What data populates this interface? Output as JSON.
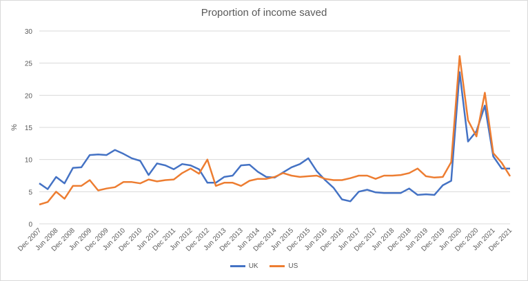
{
  "chart_data": {
    "type": "line",
    "title": "Proportion of income saved",
    "ylabel": "%",
    "xlabel": "",
    "ylim": [
      0,
      30
    ],
    "yticks": [
      0,
      5,
      10,
      15,
      20,
      25,
      30
    ],
    "grid": true,
    "legend_position": "bottom",
    "x": [
      "Dec 2007",
      "Mar 2008",
      "Jun 2008",
      "Sep 2008",
      "Dec 2008",
      "Mar 2009",
      "Jun 2009",
      "Sep 2009",
      "Dec 2009",
      "Mar 2010",
      "Jun 2010",
      "Sep 2010",
      "Dec 2010",
      "Mar 2011",
      "Jun 2011",
      "Sep 2011",
      "Dec 2011",
      "Mar 2012",
      "Jun 2012",
      "Sep 2012",
      "Dec 2012",
      "Mar 2013",
      "Jun 2013",
      "Sep 2013",
      "Dec 2013",
      "Mar 2014",
      "Jun 2014",
      "Sep 2014",
      "Dec 2014",
      "Mar 2015",
      "Jun 2015",
      "Sep 2015",
      "Dec 2015",
      "Mar 2016",
      "Jun 2016",
      "Sep 2016",
      "Dec 2016",
      "Mar 2017",
      "Jun 2017",
      "Sep 2017",
      "Dec 2017",
      "Mar 2018",
      "Jun 2018",
      "Sep 2018",
      "Dec 2018",
      "Mar 2019",
      "Jun 2019",
      "Sep 2019",
      "Dec 2019",
      "Mar 2020",
      "Jun 2020",
      "Sep 2020",
      "Dec 2020",
      "Mar 2021",
      "Jun 2021",
      "Sep 2021",
      "Dec 2021"
    ],
    "x_tick_labels": [
      "Dec 2007",
      "Jun 2008",
      "Dec 2008",
      "Jun 2009",
      "Dec 2009",
      "Jun 2010",
      "Dec 2010",
      "Jun 2011",
      "Dec 2011",
      "Jun 2012",
      "Dec 2012",
      "Jun 2013",
      "Dec 2013",
      "Jun 2014",
      "Dec 2014",
      "Jun 2015",
      "Dec 2015",
      "Jun 2016",
      "Dec 2016",
      "Jun 2017",
      "Dec 2017",
      "Jun 2018",
      "Dec 2018",
      "Jun 2019",
      "Dec 2019",
      "Jun 2020",
      "Dec 2020",
      "Jun 2021",
      "Dec 2021"
    ],
    "series": [
      {
        "name": "UK",
        "color": "#4472c4",
        "values": [
          6.3,
          5.4,
          7.3,
          6.3,
          8.7,
          8.8,
          10.7,
          10.8,
          10.7,
          11.5,
          10.9,
          10.2,
          9.8,
          7.6,
          9.4,
          9.1,
          8.5,
          9.3,
          9.1,
          8.5,
          6.4,
          6.4,
          7.3,
          7.5,
          9.1,
          9.2,
          8.1,
          7.3,
          7.2,
          8.0,
          8.8,
          9.3,
          10.2,
          8.2,
          6.8,
          5.6,
          3.8,
          3.5,
          5.0,
          5.3,
          4.9,
          4.8,
          4.8,
          4.8,
          5.5,
          4.5,
          4.6,
          4.5,
          6.0,
          6.7,
          23.6,
          12.8,
          14.4,
          18.4,
          10.5,
          8.6,
          8.6
        ]
      },
      {
        "name": "US",
        "color": "#ed7d31",
        "values": [
          3.0,
          3.4,
          5.0,
          3.9,
          5.9,
          5.9,
          6.8,
          5.2,
          5.5,
          5.7,
          6.5,
          6.5,
          6.3,
          6.9,
          6.6,
          6.8,
          6.9,
          7.9,
          8.6,
          7.8,
          10.0,
          5.9,
          6.4,
          6.4,
          5.9,
          6.7,
          7.0,
          7.0,
          7.3,
          7.9,
          7.5,
          7.3,
          7.4,
          7.5,
          7.0,
          6.8,
          6.8,
          7.1,
          7.5,
          7.5,
          7.0,
          7.5,
          7.5,
          7.6,
          7.9,
          8.6,
          7.4,
          7.2,
          7.3,
          9.6,
          26.1,
          16.1,
          13.6,
          20.4,
          11.0,
          9.5,
          7.4
        ]
      }
    ]
  }
}
